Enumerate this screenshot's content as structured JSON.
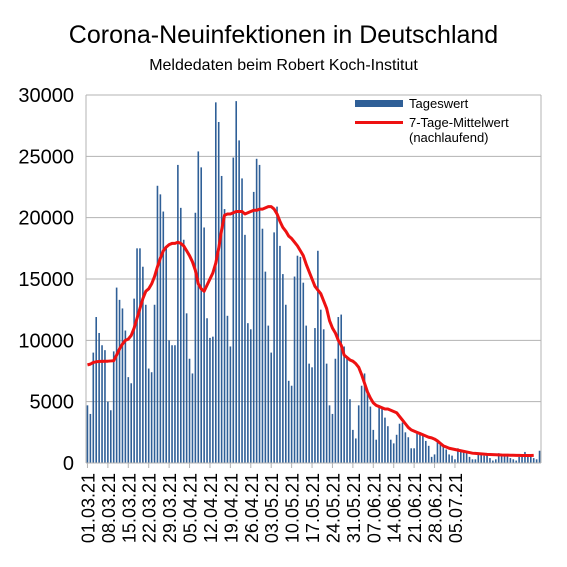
{
  "title": "Corona-Neuinfektionen in Deutschland",
  "subtitle": "Meldedaten beim Robert Koch-Institut",
  "colors": {
    "bar": "#2f5f97",
    "line": "#ee1111",
    "grid": "#b3b3b3"
  },
  "chart_data": {
    "type": "bar",
    "grid": true,
    "legend_position": "top-right",
    "ylim": [
      0,
      30000
    ],
    "yticks": [
      "0",
      "5000",
      "10000",
      "15000",
      "20000",
      "25000",
      "30000"
    ],
    "xticks": [
      "01.03.21",
      "08.03.21",
      "15.03.21",
      "22.03.21",
      "29.03.21",
      "05.04.21",
      "12.04.21",
      "19.04.21",
      "26.04.21",
      "03.05.21",
      "10.05.21",
      "17.05.21",
      "24.05.21",
      "31.05.21",
      "07.06.21",
      "14.06.21",
      "21.06.21",
      "28.06.21",
      "05.07.21"
    ],
    "series": [
      {
        "name": "Tageswert",
        "kind": "bar",
        "values": [
          4700,
          4000,
          9000,
          11900,
          10600,
          9600,
          9200,
          5000,
          4300,
          9100,
          14300,
          13300,
          12600,
          10800,
          7000,
          6500,
          13400,
          17500,
          17500,
          16000,
          12900,
          7700,
          7400,
          12900,
          22600,
          21900,
          20500,
          17600,
          10000,
          9600,
          9600,
          24300,
          20800,
          18200,
          12200,
          8500,
          7300,
          20400,
          25400,
          24100,
          19200,
          11800,
          10200,
          10300,
          29400,
          27800,
          23400,
          20700,
          12000,
          9500,
          24900,
          29500,
          26300,
          23200,
          18600,
          11400,
          10900,
          22100,
          24800,
          24300,
          19100,
          15600,
          11200,
          9000,
          18800,
          20900,
          17700,
          15400,
          12900,
          6700,
          6300,
          15200,
          16900,
          16800,
          14700,
          11200,
          8100,
          7800,
          11000,
          17300,
          12500,
          10900,
          8100,
          4700,
          4000,
          8500,
          11900,
          12100,
          9500,
          8700,
          5200,
          2700,
          2000,
          4700,
          6300,
          7300,
          5800,
          4600,
          2700,
          1900,
          4700,
          4500,
          3700,
          3000,
          1900,
          1600,
          2300,
          3200,
          3300,
          2500,
          2100,
          1200,
          1200,
          2400,
          2500,
          2300,
          1800,
          1400,
          500,
          700,
          1900,
          1500,
          1400,
          1100,
          700,
          600,
          300,
          1200,
          1000,
          900,
          800,
          500,
          300,
          300,
          700,
          800,
          600,
          700,
          400,
          200,
          300,
          800,
          700,
          700,
          600,
          400,
          300,
          200,
          500,
          700,
          900,
          600,
          500,
          400,
          300,
          1000
        ]
      },
      {
        "name": "7-Tage-Mittelwert\n(nachlaufend)",
        "kind": "line",
        "values": [
          8000,
          8060,
          8200,
          8250,
          8280,
          8280,
          8290,
          8300,
          8320,
          8340,
          8800,
          9300,
          9700,
          10000,
          10100,
          10400,
          11000,
          11800,
          12600,
          13400,
          14000,
          14200,
          14600,
          15200,
          16000,
          16700,
          17300,
          17600,
          17800,
          17900,
          17900,
          18000,
          17900,
          17700,
          17300,
          16900,
          16400,
          15700,
          14600,
          14200,
          14000,
          14500,
          15000,
          15500,
          16300,
          17500,
          19000,
          20200,
          20300,
          20300,
          20400,
          20500,
          20500,
          20500,
          20300,
          20400,
          20500,
          20600,
          20600,
          20700,
          20700,
          20800,
          20900,
          20900,
          20700,
          20300,
          19700,
          19200,
          18900,
          18500,
          18300,
          18000,
          17700,
          17300,
          16900,
          16200,
          15600,
          15000,
          14400,
          14100,
          13800,
          13200,
          12600,
          11600,
          11000,
          10600,
          10000,
          9600,
          8800,
          8600,
          8400,
          8300,
          8100,
          7800,
          7200,
          6500,
          5800,
          5300,
          4900,
          4700,
          4600,
          4500,
          4400,
          4400,
          4300,
          4200,
          4100,
          3800,
          3500,
          3200,
          2900,
          2700,
          2600,
          2500,
          2400,
          2300,
          2200,
          2100,
          2050,
          1950,
          1800,
          1600,
          1400,
          1300,
          1200,
          1150,
          1100,
          1050,
          1000,
          950,
          900,
          850,
          800,
          780,
          760,
          740,
          720,
          700,
          690,
          680,
          670,
          660,
          650,
          645,
          640,
          635,
          630,
          625,
          620,
          615,
          610,
          610,
          610,
          620
        ]
      }
    ]
  }
}
